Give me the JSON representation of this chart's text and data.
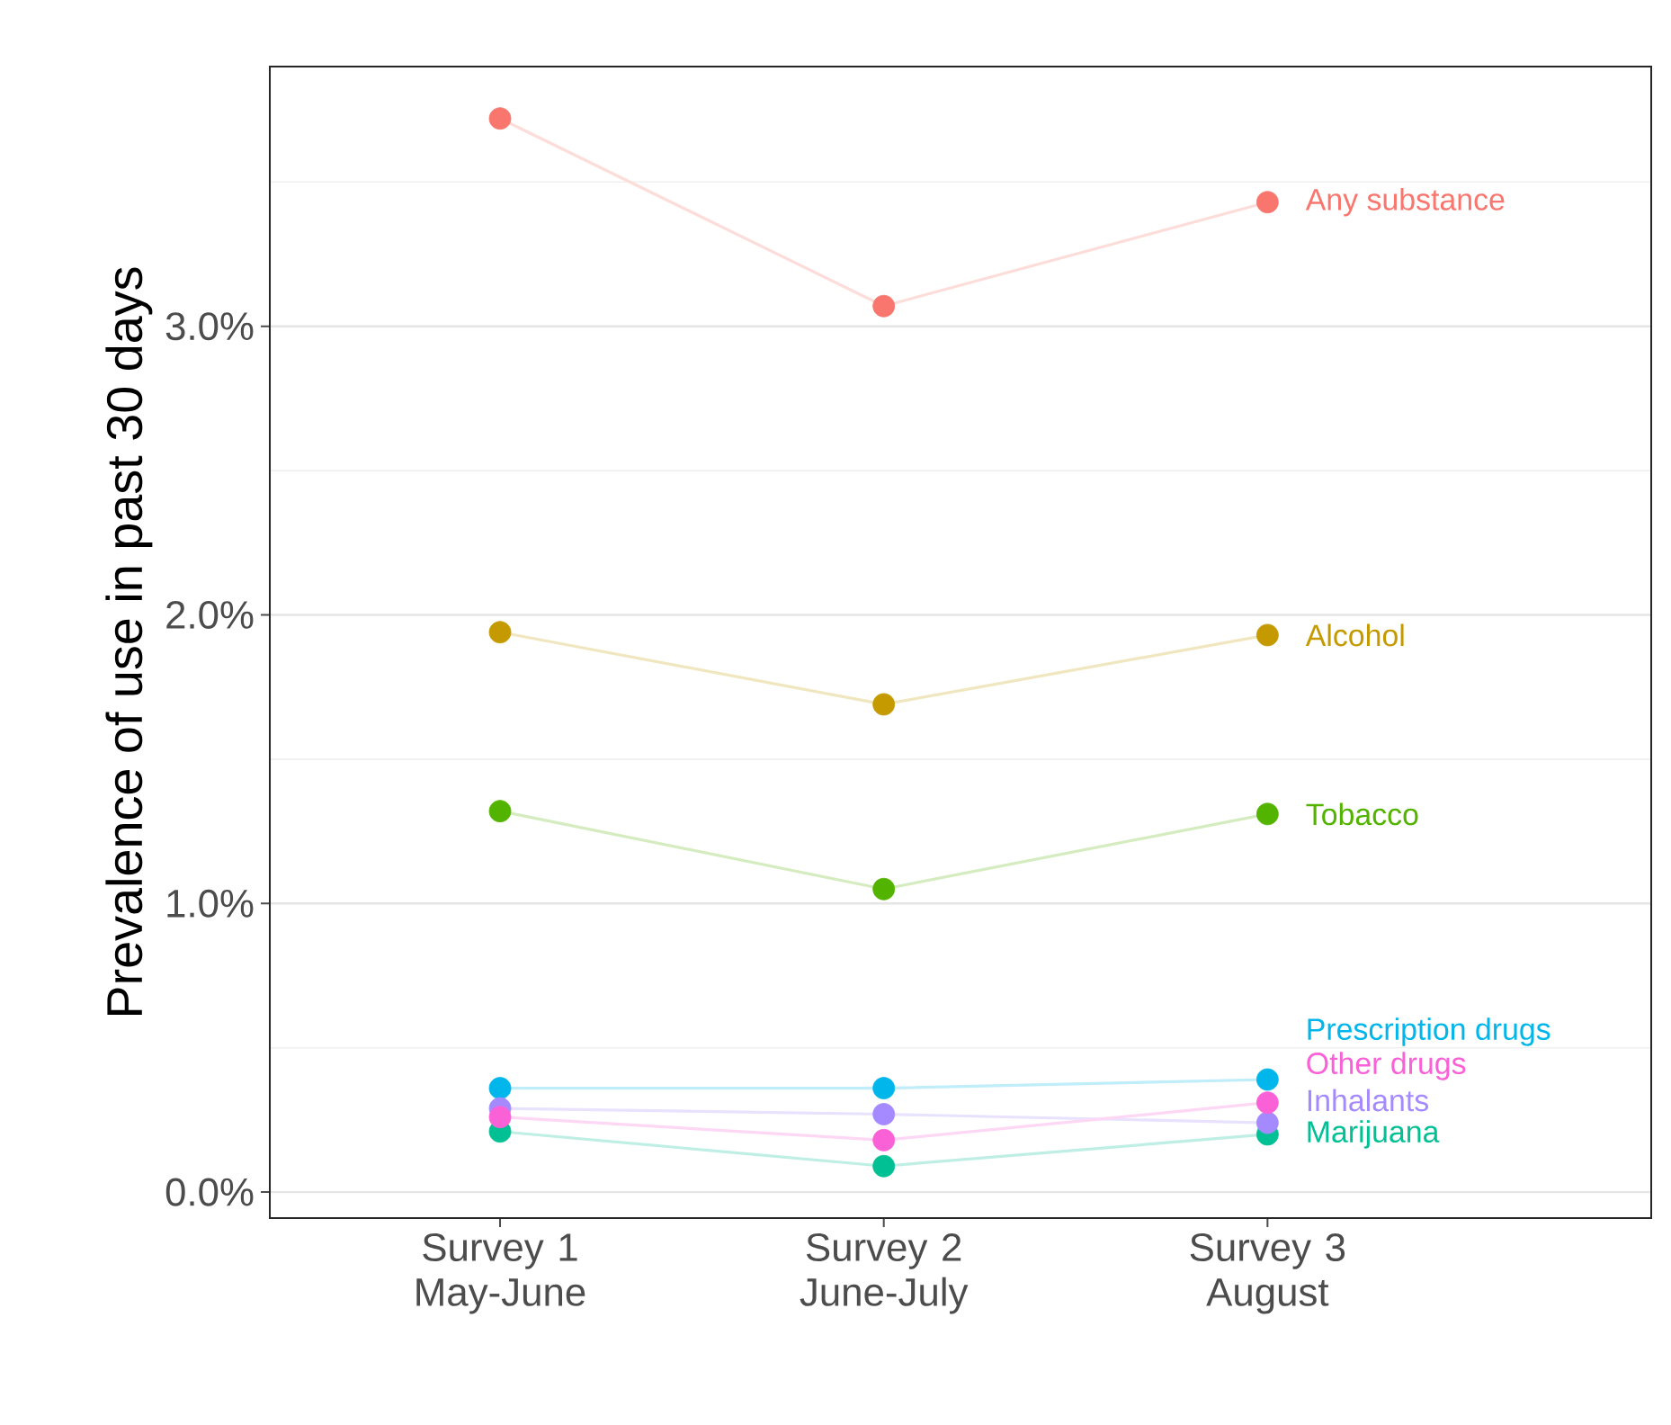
{
  "chart_data": {
    "type": "line",
    "ylabel": "Prevalence of use in past 30 days",
    "categories": [
      "Survey 1 May-June",
      "Survey 2 June-July",
      "Survey 3 August"
    ],
    "series": [
      {
        "name": "Any substance",
        "color": "#f8766d",
        "values": [
          3.72,
          3.07,
          3.43
        ]
      },
      {
        "name": "Alcohol",
        "color": "#c49a00",
        "values": [
          1.94,
          1.69,
          1.93
        ]
      },
      {
        "name": "Tobacco",
        "color": "#53b400",
        "values": [
          1.32,
          1.05,
          1.31
        ]
      },
      {
        "name": "Marijuana",
        "color": "#00c094",
        "values": [
          0.21,
          0.09,
          0.2
        ]
      },
      {
        "name": "Prescription drugs",
        "color": "#00b6eb",
        "values": [
          0.36,
          0.36,
          0.39
        ]
      },
      {
        "name": "Inhalants",
        "color": "#a58aff",
        "values": [
          0.29,
          0.27,
          0.24
        ]
      },
      {
        "name": "Other drugs",
        "color": "#fb61d7",
        "values": [
          0.26,
          0.18,
          0.31
        ]
      }
    ],
    "ylim": [
      -0.09,
      3.9
    ],
    "yticks": [
      {
        "value": 0,
        "label": "0.0%"
      },
      {
        "value": 0.5,
        "label": null
      },
      {
        "value": 1,
        "label": "1.0%"
      },
      {
        "value": 1.5,
        "label": null
      },
      {
        "value": 2,
        "label": "2.0%"
      },
      {
        "value": 2.5,
        "label": null
      },
      {
        "value": 3,
        "label": "3.0%"
      },
      {
        "value": 3.5,
        "label": null
      }
    ],
    "grid": "y",
    "marker": "circle",
    "line_style": "solid"
  }
}
